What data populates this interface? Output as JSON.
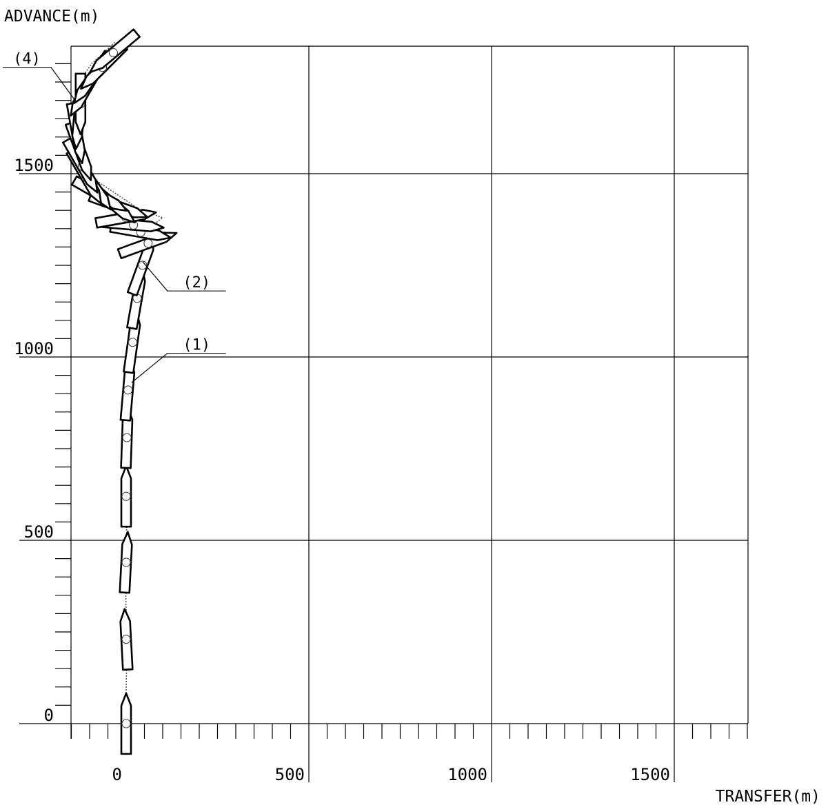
{
  "chart_data": {
    "type": "line",
    "title": "",
    "xlabel": "TRANSFER(m)",
    "ylabel": "ADVANCE(m)",
    "xlim": [
      -150,
      1700
    ],
    "ylim": [
      -50,
      1850
    ],
    "x_ticks": [
      0,
      500,
      1000,
      1500
    ],
    "x_tick_labels": [
      "0",
      "500",
      "1000",
      "1500"
    ],
    "y_ticks": [
      0,
      500,
      1000,
      1500
    ],
    "y_tick_labels": [
      "0",
      "500",
      "1000",
      "1500"
    ],
    "minor_tick_step": 50,
    "grid": true,
    "series": [
      {
        "name": "",
        "x": [
          0,
          0,
          2,
          0,
          -2,
          0,
          2,
          0,
          -2,
          0,
          0,
          0,
          2,
          5,
          10,
          15,
          20,
          25,
          30,
          35,
          40,
          45,
          50,
          60,
          80,
          100,
          70,
          40,
          10,
          -20,
          -50,
          -80,
          -100,
          -120,
          -140,
          -150,
          -145,
          -135,
          -130,
          -125,
          -115,
          -95,
          -60,
          -30
        ],
        "y": [
          0,
          100,
          200,
          300,
          400,
          450,
          500,
          580,
          650,
          720,
          780,
          820,
          880,
          940,
          1000,
          1060,
          1120,
          1170,
          1200,
          1230,
          1260,
          1290,
          1320,
          1350,
          1365,
          1380,
          1390,
          1400,
          1420,
          1440,
          1460,
          1480,
          1500,
          1530,
          1570,
          1620,
          1660,
          1690,
          1720,
          1745,
          1770,
          1800,
          1830,
          1860
        ]
      }
    ],
    "ship_positions": [
      {
        "x": 0,
        "y": 0,
        "heading": 0
      },
      {
        "x": 0,
        "y": 230,
        "heading": -3
      },
      {
        "x": 0,
        "y": 440,
        "heading": 3
      },
      {
        "x": 0,
        "y": 620,
        "heading": 0
      },
      {
        "x": 2,
        "y": 780,
        "heading": 2
      },
      {
        "x": 5,
        "y": 910,
        "heading": 5
      },
      {
        "x": 18,
        "y": 1040,
        "heading": 8
      },
      {
        "x": 30,
        "y": 1160,
        "heading": 10
      },
      {
        "x": 45,
        "y": 1250,
        "heading": 20
      },
      {
        "x": 60,
        "y": 1310,
        "heading": 70
      },
      {
        "x": 40,
        "y": 1340,
        "heading": 100
      },
      {
        "x": 20,
        "y": 1360,
        "heading": 95
      },
      {
        "x": 0,
        "y": 1380,
        "heading": 80
      },
      {
        "x": -20,
        "y": 1410,
        "heading": 110
      },
      {
        "x": -40,
        "y": 1420,
        "heading": 130
      },
      {
        "x": -70,
        "y": 1440,
        "heading": 120
      },
      {
        "x": -90,
        "y": 1470,
        "heading": 145
      },
      {
        "x": -110,
        "y": 1490,
        "heading": 150
      },
      {
        "x": -120,
        "y": 1520,
        "heading": 150
      },
      {
        "x": -125,
        "y": 1560,
        "heading": 160
      },
      {
        "x": -135,
        "y": 1610,
        "heading": 170
      },
      {
        "x": -130,
        "y": 1650,
        "heading": 185
      },
      {
        "x": -125,
        "y": 1690,
        "heading": 180
      },
      {
        "x": -110,
        "y": 1730,
        "heading": 210
      },
      {
        "x": -95,
        "y": 1760,
        "heading": 215
      },
      {
        "x": -65,
        "y": 1790,
        "heading": 225
      },
      {
        "x": -35,
        "y": 1830,
        "heading": 230
      }
    ],
    "annotations": [
      {
        "label": "(1)",
        "point_x": 15,
        "point_y": 930,
        "label_x": 160,
        "label_y": 1010
      },
      {
        "label": "(2)",
        "point_x": 45,
        "point_y": 1260,
        "label_x": 160,
        "label_y": 1180
      },
      {
        "label": "(4)",
        "point_x": -140,
        "point_y": 1700,
        "label_x": -300,
        "label_y": 1790
      }
    ]
  }
}
